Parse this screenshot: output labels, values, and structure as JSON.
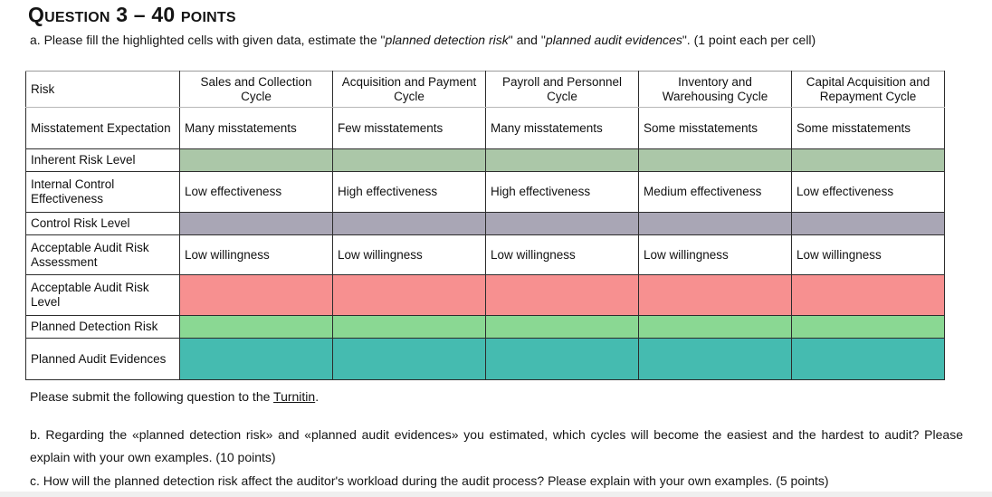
{
  "texts": {
    "title": "Question 3 – 40 points",
    "a_prefix": "a. Please fill the highlighted cells with given data, estimate the \"",
    "a_italic1": "planned detection risk",
    "a_mid": "\" and \"",
    "a_italic2": "planned audit evidences",
    "a_suffix": "\". (1 point each per cell)",
    "submit_prefix": "Please submit the following question to the ",
    "submit_link": "Turnitin",
    "submit_suffix": ".",
    "question_b": "b. Regarding the «planned detection risk» and «planned audit evidences» you estimated, which cycles will become the easiest and the hardest to audit? Please explain with your own examples. (10 points)",
    "question_c": "c. How will the planned detection risk affect the auditor's workload during the audit process? Please explain with your own examples. (5 points)"
  },
  "highlight_colors": {
    "inherent_risk": "#abc7a8",
    "control_risk": "#a9a6b5",
    "acceptable_audit_risk": "#f79090",
    "planned_detection_risk": "#8ad893",
    "planned_audit_evidences": "#45bbb0"
  },
  "table": {
    "columns": [
      "Risk",
      "Sales and Collection Cycle",
      "Acquisition and Payment Cycle",
      "Payroll and Personnel Cycle",
      "Inventory and Warehousing Cycle",
      "Capital Acquisition and Repayment Cycle"
    ],
    "rows": [
      {
        "label": "Misstatement Expectation",
        "type": "text",
        "values": [
          "Many misstatements",
          "Few misstatements",
          "Many misstatements",
          "Some misstatements",
          "Some misstatements"
        ]
      },
      {
        "label": "Inherent Risk Level",
        "type": "highlight",
        "color": "#abc7a8",
        "values": [
          "",
          "",
          "",
          "",
          ""
        ]
      },
      {
        "label": "Internal Control Effectiveness",
        "type": "text",
        "values": [
          "Low effectiveness",
          "High effectiveness",
          "High effectiveness",
          "Medium effectiveness",
          "Low effectiveness"
        ]
      },
      {
        "label": "Control Risk Level",
        "type": "highlight",
        "color": "#a9a6b5",
        "values": [
          "",
          "",
          "",
          "",
          ""
        ]
      },
      {
        "label": "Acceptable Audit Risk Assessment",
        "type": "text",
        "values": [
          "Low willingness",
          "Low willingness",
          "Low willingness",
          "Low willingness",
          "Low willingness"
        ]
      },
      {
        "label": "Acceptable Audit Risk Level",
        "type": "highlight",
        "color": "#f79090",
        "values": [
          "",
          "",
          "",
          "",
          ""
        ]
      },
      {
        "label": "Planned Detection Risk",
        "type": "highlight",
        "color": "#8ad893",
        "values": [
          "",
          "",
          "",
          "",
          ""
        ]
      },
      {
        "label": "Planned Audit Evidences",
        "type": "highlight",
        "color": "#45bbb0",
        "values": [
          "",
          "",
          "",
          "",
          ""
        ]
      }
    ]
  }
}
